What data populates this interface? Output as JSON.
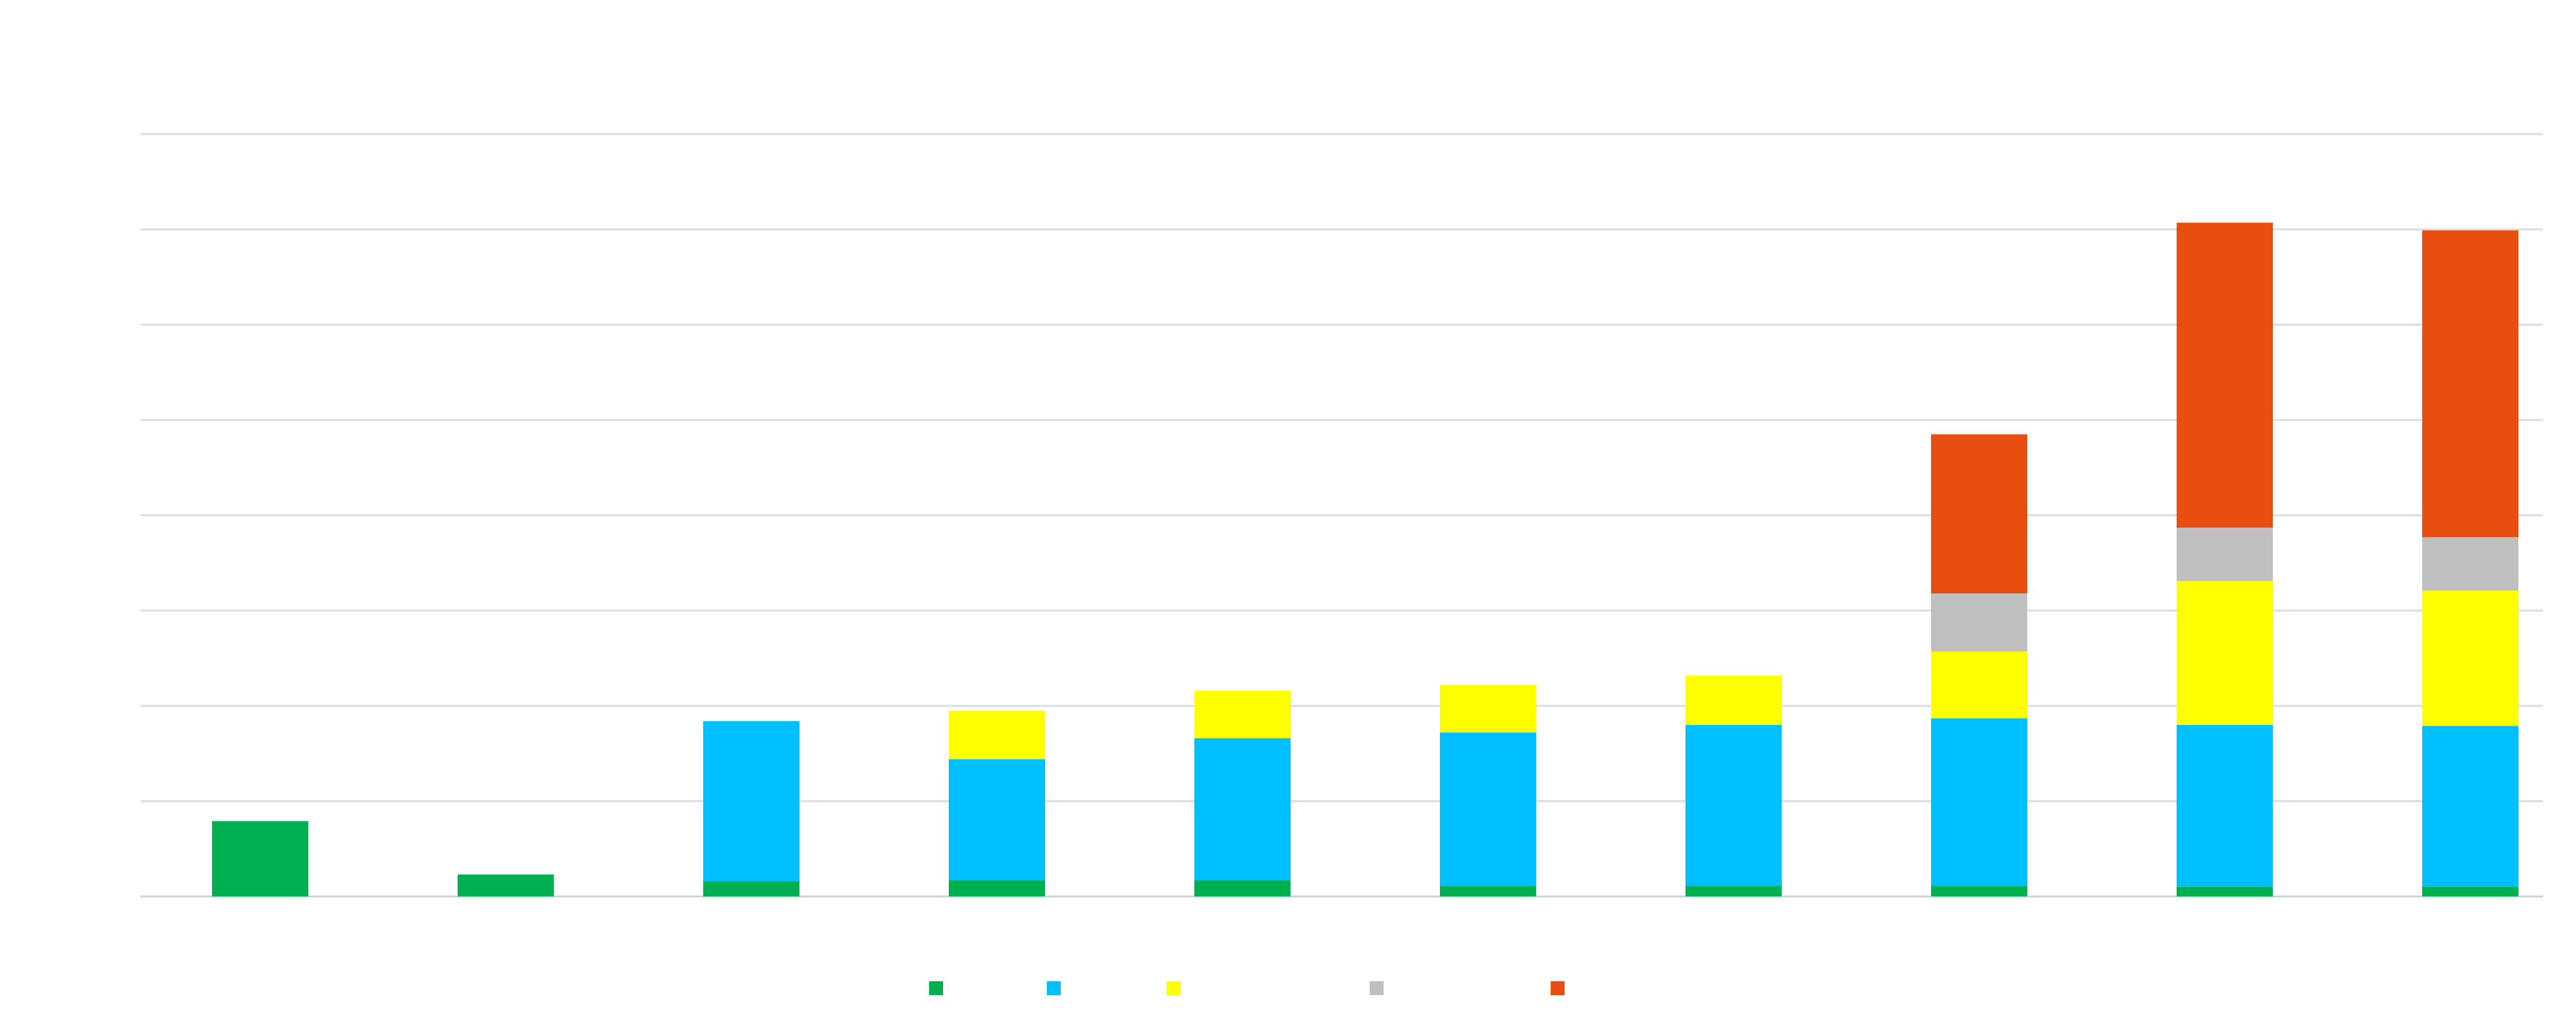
{
  "chart_data": {
    "type": "bar",
    "stacked": true,
    "title": "",
    "xlabel": "",
    "ylabel": "",
    "categories": [
      "",
      "",
      "",
      "",
      "",
      "",
      "",
      "",
      "",
      ""
    ],
    "ylim": [
      0,
      8
    ],
    "gridlines": [
      0,
      1,
      2,
      3,
      4,
      5,
      6,
      7,
      8
    ],
    "grid": true,
    "legend_position": "bottom-center",
    "series": [
      {
        "color": "#00B050",
        "values": [
          0.79,
          0.23,
          0.16,
          0.17,
          0.17,
          0.11,
          0.11,
          0.11,
          0.1,
          0.1
        ]
      },
      {
        "color": "#00BFFF",
        "values": [
          0.0,
          0.0,
          1.68,
          1.27,
          1.49,
          1.61,
          1.69,
          1.76,
          1.7,
          1.69
        ]
      },
      {
        "color": "#FFFF00",
        "values": [
          0.0,
          0.0,
          0.0,
          0.51,
          0.5,
          0.5,
          0.52,
          0.7,
          1.51,
          1.42
        ]
      },
      {
        "color": "#BFBFBF",
        "values": [
          0.0,
          0.0,
          0.0,
          0.0,
          0.0,
          0.0,
          0.0,
          0.61,
          0.56,
          0.56
        ]
      },
      {
        "color": "#E84E0F",
        "values": [
          0.0,
          0.0,
          0.0,
          0.0,
          0.0,
          0.0,
          0.0,
          1.67,
          3.2,
          3.22
        ]
      }
    ]
  }
}
